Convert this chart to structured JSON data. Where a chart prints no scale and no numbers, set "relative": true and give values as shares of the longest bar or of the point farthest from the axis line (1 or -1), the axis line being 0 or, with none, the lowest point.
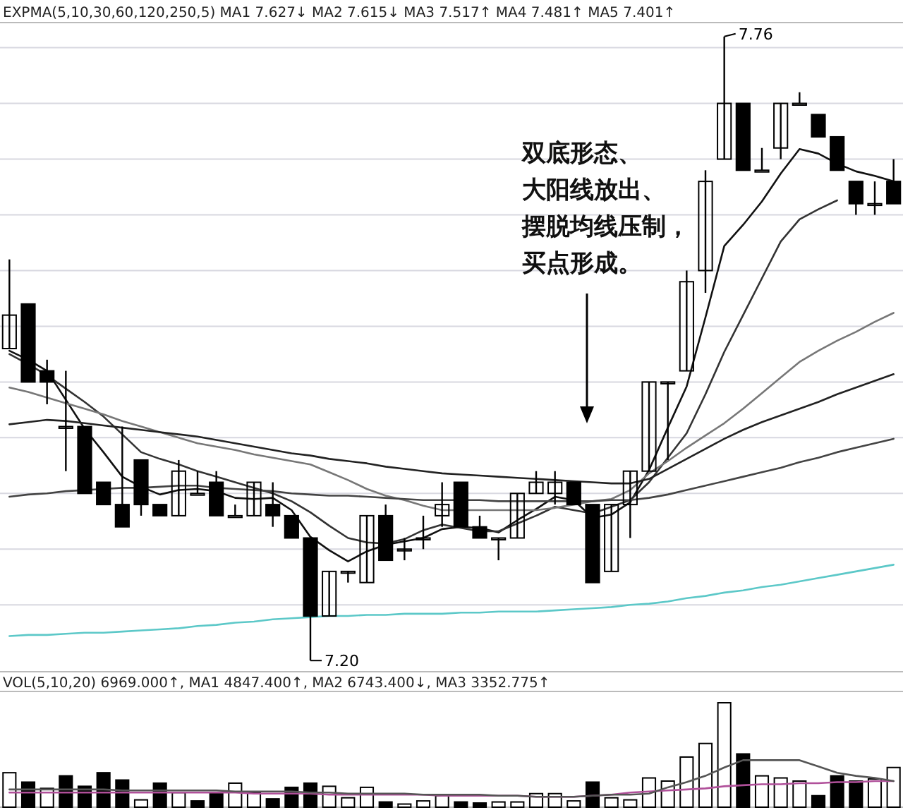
{
  "chart_data": [
    {
      "type": "candlestick",
      "title": "EXPMA(5,10,30,60,120,250,5)  MA1 7.627↓  MA2 7.615↓  MA3 7.517↑  MA4 7.481↑  MA5 7.401↑",
      "categories": [
        null,
        null,
        null,
        null,
        null,
        null,
        null,
        null,
        null,
        null,
        null,
        null,
        null,
        null,
        null,
        null,
        null,
        null,
        null,
        null,
        null,
        null,
        null,
        null,
        null,
        null,
        null,
        null,
        null,
        null,
        null,
        null,
        null,
        null,
        null,
        null,
        null,
        null,
        null,
        null,
        null,
        null,
        null,
        null,
        null,
        null,
        null,
        null
      ],
      "ohlc": [
        [
          7.48,
          7.56,
          7.48,
          7.51
        ],
        [
          7.52,
          7.52,
          7.45,
          7.45
        ],
        [
          7.46,
          7.47,
          7.43,
          7.45
        ],
        [
          7.41,
          7.46,
          7.37,
          7.41
        ],
        [
          7.41,
          7.41,
          7.35,
          7.35
        ],
        [
          7.36,
          7.36,
          7.34,
          7.34
        ],
        [
          7.34,
          7.41,
          7.32,
          7.32
        ],
        [
          7.38,
          7.38,
          7.33,
          7.34
        ],
        [
          7.34,
          7.34,
          7.33,
          7.33
        ],
        [
          7.33,
          7.38,
          7.33,
          7.37
        ],
        [
          7.35,
          7.37,
          7.35,
          7.35
        ],
        [
          7.36,
          7.37,
          7.33,
          7.33
        ],
        [
          7.33,
          7.34,
          7.33,
          7.33
        ],
        [
          7.33,
          7.36,
          7.33,
          7.36
        ],
        [
          7.34,
          7.36,
          7.32,
          7.33
        ],
        [
          7.33,
          7.33,
          7.31,
          7.31
        ],
        [
          7.31,
          7.31,
          7.2,
          7.24
        ],
        [
          7.24,
          7.28,
          7.24,
          7.28
        ],
        [
          7.28,
          7.28,
          7.27,
          7.28
        ],
        [
          7.27,
          7.33,
          7.27,
          7.33
        ],
        [
          7.33,
          7.34,
          7.29,
          7.29
        ],
        [
          7.3,
          7.31,
          7.29,
          7.3
        ],
        [
          7.31,
          7.33,
          7.3,
          7.31
        ],
        [
          7.33,
          7.36,
          7.32,
          7.34
        ],
        [
          7.36,
          7.36,
          7.32,
          7.32
        ],
        [
          7.32,
          7.33,
          7.31,
          7.31
        ],
        [
          7.31,
          7.31,
          7.29,
          7.31
        ],
        [
          7.31,
          7.35,
          7.31,
          7.35
        ],
        [
          7.35,
          7.37,
          7.35,
          7.36
        ],
        [
          7.35,
          7.37,
          7.34,
          7.36
        ],
        [
          7.36,
          7.36,
          7.34,
          7.34
        ],
        [
          7.34,
          7.34,
          7.27,
          7.27
        ],
        [
          7.28,
          7.34,
          7.28,
          7.34
        ],
        [
          7.34,
          7.37,
          7.31,
          7.37
        ],
        [
          7.37,
          7.45,
          7.37,
          7.45
        ],
        [
          7.45,
          7.45,
          7.38,
          7.45
        ],
        [
          7.46,
          7.55,
          7.46,
          7.54
        ],
        [
          7.55,
          7.64,
          7.53,
          7.63
        ],
        [
          7.65,
          7.76,
          7.65,
          7.7
        ],
        [
          7.7,
          7.7,
          7.64,
          7.64
        ],
        [
          7.64,
          7.66,
          7.64,
          7.64
        ],
        [
          7.66,
          7.7,
          7.65,
          7.7
        ],
        [
          7.7,
          7.71,
          7.7,
          7.7
        ],
        [
          7.69,
          7.69,
          7.67,
          7.67
        ],
        [
          7.67,
          7.67,
          7.64,
          7.64
        ],
        [
          7.63,
          7.63,
          7.6,
          7.61
        ],
        [
          7.61,
          7.63,
          7.6,
          7.61
        ],
        [
          7.63,
          7.65,
          7.61,
          7.61
        ]
      ],
      "series": [
        {
          "type": "line",
          "color": "#111111",
          "values": [
            7.478,
            7.47,
            7.46,
            7.434,
            7.408,
            7.387,
            7.365,
            7.356,
            7.349,
            7.353,
            7.354,
            7.352,
            7.346,
            7.345,
            7.346,
            7.335,
            7.311,
            7.299,
            7.289,
            7.298,
            7.304,
            7.307,
            7.31,
            7.318,
            7.32,
            7.319,
            7.315,
            7.326,
            7.336,
            7.347,
            7.344,
            7.328,
            7.331,
            7.342,
            7.371,
            7.409,
            7.446,
            7.508,
            7.572,
            7.591,
            7.612,
            7.637,
            7.659,
            7.655,
            7.646,
            7.639,
            7.635,
            7.63
          ]
        },
        {
          "type": "line",
          "color": "#333333",
          "values": [
            7.475,
            7.466,
            7.456,
            7.444,
            7.432,
            7.419,
            7.403,
            7.387,
            7.381,
            7.376,
            7.37,
            7.365,
            7.36,
            7.355,
            7.35,
            7.343,
            7.333,
            7.321,
            7.31,
            7.306,
            7.305,
            7.309,
            7.317,
            7.322,
            7.319,
            7.316,
            7.316,
            7.323,
            7.33,
            7.338,
            7.335,
            7.332,
            7.338,
            7.344,
            7.36,
            7.382,
            7.404,
            7.439,
            7.477,
            7.51,
            7.543,
            7.576,
            7.596,
            7.605,
            7.613,
            null,
            null,
            null
          ]
        },
        {
          "type": "line",
          "color": "#777777",
          "values": [
            7.445,
            7.441,
            7.436,
            7.431,
            7.426,
            7.421,
            7.415,
            7.41,
            7.405,
            7.4,
            7.395,
            7.392,
            7.389,
            7.385,
            7.382,
            7.379,
            7.376,
            7.369,
            7.362,
            7.354,
            7.348,
            7.344,
            7.339,
            7.335,
            7.335,
            7.335,
            7.335,
            7.335,
            7.335,
            7.337,
            7.34,
            7.343,
            7.345,
            7.353,
            7.368,
            7.379,
            7.391,
            7.402,
            7.413,
            7.426,
            7.44,
            7.454,
            7.468,
            7.478,
            7.487,
            7.495,
            7.504,
            7.512
          ]
        },
        {
          "type": "line",
          "color": "#222222",
          "values": [
            7.412,
            7.414,
            7.416,
            7.415,
            7.413,
            7.411,
            7.409,
            7.407,
            7.405,
            7.403,
            7.401,
            7.398,
            7.395,
            7.392,
            7.389,
            7.386,
            7.384,
            7.381,
            7.379,
            7.377,
            7.374,
            7.372,
            7.37,
            7.368,
            7.367,
            7.366,
            7.365,
            7.364,
            7.363,
            7.362,
            7.361,
            7.36,
            7.359,
            7.359,
            7.363,
            7.372,
            7.381,
            7.39,
            7.399,
            7.407,
            7.414,
            7.42,
            7.426,
            7.432,
            7.439,
            7.445,
            7.451,
            7.457
          ]
        },
        {
          "type": "line",
          "color": "#444444",
          "values": [
            7.347,
            7.349,
            7.35,
            7.352,
            7.353,
            7.354,
            7.355,
            7.355,
            7.356,
            7.357,
            7.357,
            7.355,
            7.354,
            7.353,
            7.352,
            7.35,
            7.349,
            7.348,
            7.348,
            7.347,
            7.346,
            7.345,
            7.344,
            7.344,
            7.344,
            7.344,
            7.343,
            7.343,
            7.343,
            7.343,
            7.343,
            7.343,
            7.344,
            7.344,
            7.346,
            7.349,
            7.353,
            7.357,
            7.361,
            7.365,
            7.369,
            7.373,
            7.378,
            7.382,
            7.387,
            7.391,
            7.395,
            7.399
          ]
        },
        {
          "type": "line",
          "color": "#5cc8c8",
          "values": [
            7.222,
            7.223,
            7.223,
            7.224,
            7.225,
            7.225,
            7.226,
            7.227,
            7.228,
            7.229,
            7.231,
            7.232,
            7.234,
            7.235,
            7.237,
            7.238,
            7.239,
            7.24,
            7.24,
            7.241,
            7.241,
            7.242,
            7.242,
            7.242,
            7.243,
            7.243,
            7.244,
            7.244,
            7.244,
            7.245,
            7.246,
            7.247,
            7.248,
            7.25,
            7.251,
            7.253,
            7.256,
            7.258,
            7.261,
            7.263,
            7.266,
            7.268,
            7.271,
            7.274,
            7.277,
            7.28,
            7.283,
            7.286
          ]
        }
      ],
      "ylim": [
        7.19,
        7.77
      ],
      "yticks": [
        {
          "value": 7.25,
          "label": null
        },
        {
          "value": 7.3,
          "label": null
        },
        {
          "value": 7.35,
          "label": null
        },
        {
          "value": 7.4,
          "label": null
        },
        {
          "value": 7.45,
          "label": null
        },
        {
          "value": 7.5,
          "label": null
        },
        {
          "value": 7.55,
          "label": null
        },
        {
          "value": 7.6,
          "label": null
        },
        {
          "value": 7.65,
          "label": null
        },
        {
          "value": 7.7,
          "label": null
        },
        {
          "value": 7.75,
          "label": null
        }
      ],
      "grid": "y",
      "annotations": [
        "双底形态、",
        "大阳线放出、",
        "摆脱均线压制，",
        "买点形成。",
        "7.76",
        "7.20"
      ]
    },
    {
      "type": "bar",
      "relative": true,
      "title": "VOL(5,10,20) 6969.000↑, MA1 4847.400↑, MA2 6743.400↓, MA3 3352.775↑",
      "categories": [
        null,
        null,
        null,
        null,
        null,
        null,
        null,
        null,
        null,
        null,
        null,
        null,
        null,
        null,
        null,
        null,
        null,
        null,
        null,
        null,
        null,
        null,
        null,
        null,
        null,
        null,
        null,
        null,
        null,
        null,
        null,
        null,
        null,
        null,
        null,
        null,
        null,
        null,
        null,
        null,
        null,
        null,
        null,
        null,
        null,
        null,
        null,
        null
      ],
      "values": [
        0.33,
        0.24,
        0.18,
        0.3,
        0.2,
        0.33,
        0.26,
        0.07,
        0.23,
        0.14,
        0.06,
        0.14,
        0.23,
        0.14,
        0.08,
        0.19,
        0.23,
        0.2,
        0.09,
        0.19,
        0.05,
        0.03,
        0.06,
        0.11,
        0.05,
        0.04,
        0.05,
        0.05,
        0.13,
        0.13,
        0.06,
        0.24,
        0.09,
        0.07,
        0.28,
        0.25,
        0.48,
        0.61,
        1,
        0.51,
        0.3,
        0.28,
        0.25,
        0.11,
        0.3,
        0.25,
        0.27,
        0.38
      ],
      "colors": [
        "#ffffff",
        "#000000",
        "#ffffff",
        "#000000",
        "#000000",
        "#000000",
        "#000000",
        "#ffffff",
        "#000000",
        "#ffffff",
        "#000000",
        "#000000",
        "#ffffff",
        "#ffffff",
        "#000000",
        "#000000",
        "#000000",
        "#ffffff",
        "#ffffff",
        "#ffffff",
        "#000000",
        "#ffffff",
        "#ffffff",
        "#ffffff",
        "#000000",
        "#000000",
        "#ffffff",
        "#ffffff",
        "#ffffff",
        "#ffffff",
        "#ffffff",
        "#000000",
        "#ffffff",
        "#ffffff",
        "#ffffff",
        "#ffffff",
        "#ffffff",
        "#ffffff",
        "#ffffff",
        "#000000",
        "#ffffff",
        "#ffffff",
        "#ffffff",
        "#000000",
        "#000000",
        "#000000",
        "#ffffff",
        "#ffffff"
      ],
      "series": [
        {
          "type": "line",
          "color": "#b0509a",
          "values": [
            0.14,
            0.14,
            0.14,
            0.14,
            0.14,
            0.14,
            0.14,
            0.14,
            0.14,
            0.14,
            0.14,
            0.14,
            0.14,
            0.13,
            0.13,
            0.13,
            0.13,
            0.12,
            0.12,
            0.12,
            0.12,
            0.12,
            0.12,
            0.11,
            0.11,
            0.11,
            0.11,
            0.11,
            0.1,
            0.1,
            0.1,
            0.11,
            0.12,
            0.14,
            0.15,
            0.16,
            0.17,
            0.18,
            0.2,
            0.21,
            0.22,
            0.22,
            0.23,
            0.23,
            0.24,
            0.24,
            0.25,
            0.25
          ]
        },
        {
          "type": "line",
          "color": "#555555",
          "values": [
            0.17,
            0.17,
            0.17,
            0.17,
            0.17,
            0.17,
            0.16,
            0.16,
            0.16,
            0.16,
            0.16,
            0.16,
            0.15,
            0.15,
            0.15,
            0.15,
            0.14,
            0.14,
            0.13,
            0.13,
            0.13,
            0.13,
            0.12,
            0.12,
            0.12,
            0.12,
            0.11,
            0.11,
            0.1,
            0.1,
            0.1,
            0.11,
            0.12,
            0.12,
            0.13,
            0.19,
            0.24,
            0.3,
            0.38,
            0.45,
            0.45,
            0.45,
            0.45,
            0.39,
            0.33,
            0.3,
            0.28,
            0.25
          ]
        }
      ]
    }
  ]
}
